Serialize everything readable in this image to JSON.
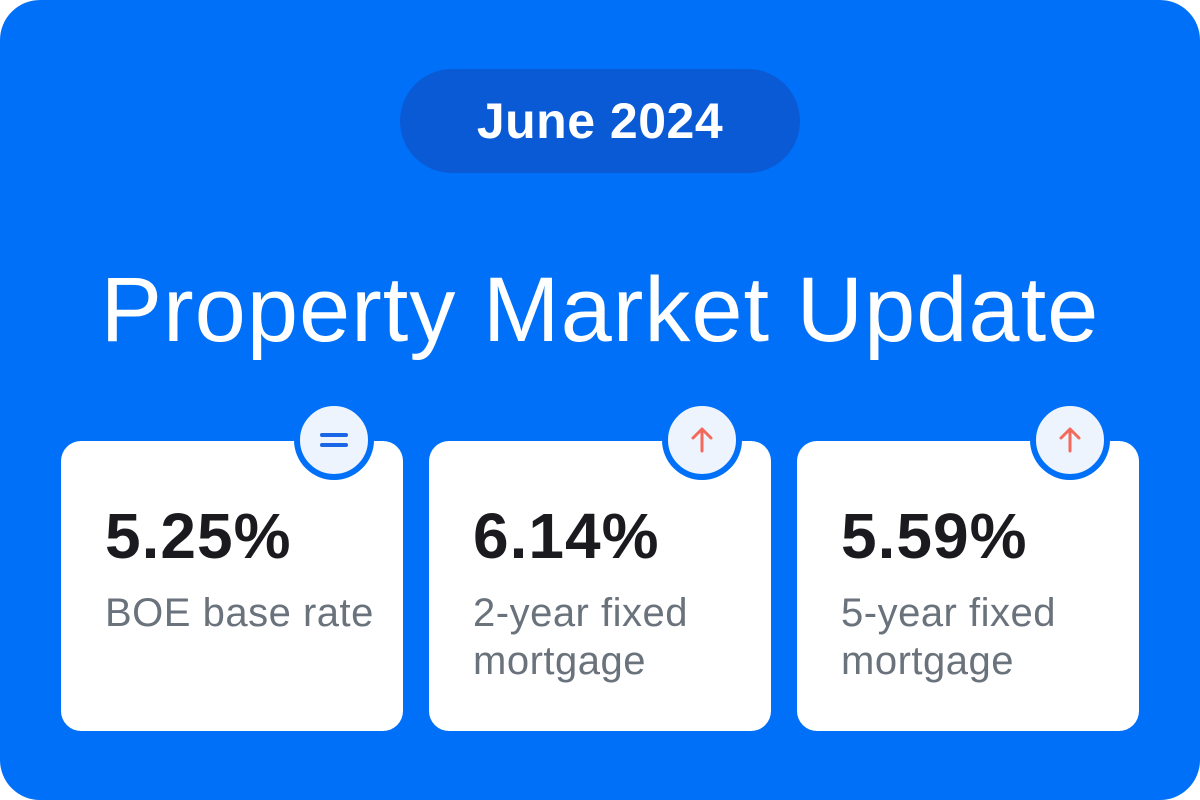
{
  "colors": {
    "background": "#0070F8",
    "pill": "#0A5AD6",
    "card": "#FFFFFF",
    "badge_fill": "#EEF4FD",
    "equal_icon": "#1A66E6",
    "up_arrow": "#F36A5C"
  },
  "header": {
    "date": "June 2024",
    "title": "Property Market Update"
  },
  "cards": [
    {
      "value": "5.25%",
      "label": "BOE base rate",
      "trend_icon": "equals-icon"
    },
    {
      "value": "6.14%",
      "label": "2-year fixed mortgage",
      "trend_icon": "arrow-up-icon"
    },
    {
      "value": "5.59%",
      "label": "5-year fixed mortgage",
      "trend_icon": "arrow-up-icon"
    }
  ]
}
